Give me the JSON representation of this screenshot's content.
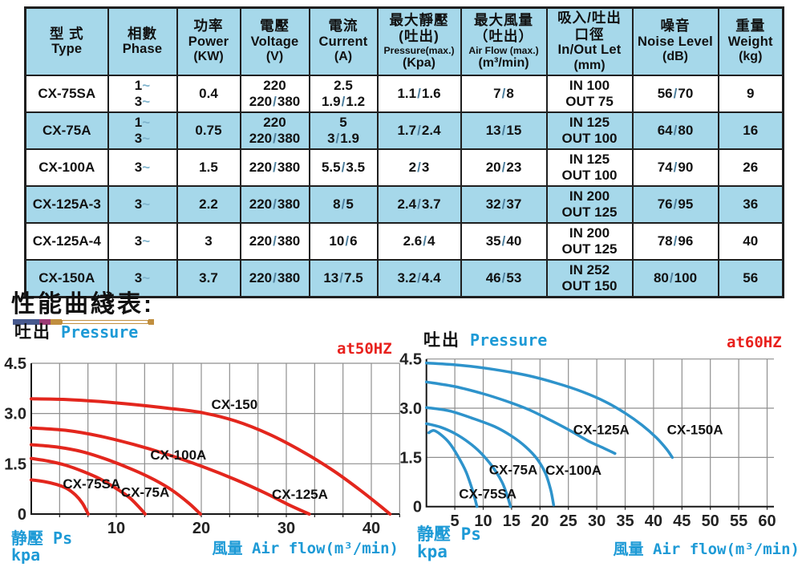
{
  "table": {
    "headers": [
      {
        "key": "type",
        "lines": [
          [
            "型 式",
            "zh"
          ],
          [
            "Type",
            "en"
          ]
        ]
      },
      {
        "key": "phase",
        "lines": [
          [
            "相數",
            "zh"
          ],
          [
            "Phase",
            "en"
          ]
        ]
      },
      {
        "key": "power",
        "lines": [
          [
            "功率",
            "zh"
          ],
          [
            "Power",
            "en"
          ],
          [
            "(KW)",
            "unit"
          ]
        ]
      },
      {
        "key": "voltage",
        "lines": [
          [
            "電壓",
            "zh"
          ],
          [
            "Voltage",
            "en"
          ],
          [
            "(V)",
            "unit"
          ]
        ]
      },
      {
        "key": "current",
        "lines": [
          [
            "電流",
            "zh"
          ],
          [
            "Current",
            "en"
          ],
          [
            "(A)",
            "unit"
          ]
        ]
      },
      {
        "key": "pressure-max",
        "lines": [
          [
            "最大靜壓",
            "zh"
          ],
          [
            "(吐出)",
            "zh2"
          ],
          [
            "Pressure(max.)",
            "small"
          ],
          [
            "(Kpa)",
            "unit"
          ]
        ]
      },
      {
        "key": "airflow-max",
        "lines": [
          [
            "最大風量",
            "zh"
          ],
          [
            "（吐出）",
            "zh2"
          ],
          [
            "Air Flow (max.)",
            "small"
          ],
          [
            "(m³/min)",
            "unit"
          ]
        ]
      },
      {
        "key": "inout",
        "lines": [
          [
            "吸入/吐出",
            "zh"
          ],
          [
            "口徑",
            "zh2"
          ],
          [
            "In/Out Let",
            "en"
          ],
          [
            "(mm)",
            "unit"
          ]
        ]
      },
      {
        "key": "noise",
        "lines": [
          [
            "噪音",
            "zh"
          ],
          [
            "Noise Level",
            "en"
          ],
          [
            "(dB)",
            "unit"
          ]
        ]
      },
      {
        "key": "weight",
        "lines": [
          [
            "重量",
            "zh"
          ],
          [
            "Weight",
            "en"
          ],
          [
            "(kg)",
            "unit"
          ]
        ]
      }
    ],
    "rows": [
      {
        "cells": [
          [
            "CX-75SA"
          ],
          [
            "1~",
            "3~"
          ],
          [
            "0.4"
          ],
          [
            "220",
            "220/380"
          ],
          [
            "2.5",
            "1.9/1.2"
          ],
          [
            "1.1/1.6"
          ],
          [
            "7/8"
          ],
          [
            "IN 100",
            "OUT 75"
          ],
          [
            "56/70"
          ],
          [
            "9"
          ]
        ]
      },
      {
        "cells": [
          [
            "CX-75A"
          ],
          [
            "1~",
            "3~"
          ],
          [
            "0.75"
          ],
          [
            "220",
            "220/380"
          ],
          [
            "5",
            "3/1.9"
          ],
          [
            "1.7/2.4"
          ],
          [
            "13/15"
          ],
          [
            "IN 125",
            "OUT 100"
          ],
          [
            "64/80"
          ],
          [
            "16"
          ]
        ]
      },
      {
        "cells": [
          [
            "CX-100A"
          ],
          [
            "3~"
          ],
          [
            "1.5"
          ],
          [
            "220/380"
          ],
          [
            "5.5/3.5"
          ],
          [
            "2/3"
          ],
          [
            "20/23"
          ],
          [
            "IN 125",
            "OUT 100"
          ],
          [
            "74/90"
          ],
          [
            "26"
          ]
        ]
      },
      {
        "cells": [
          [
            "CX-125A-3"
          ],
          [
            "3~"
          ],
          [
            "2.2"
          ],
          [
            "220/380"
          ],
          [
            "8/5"
          ],
          [
            "2.4/3.7"
          ],
          [
            "32/37"
          ],
          [
            "IN 200",
            "OUT 125"
          ],
          [
            "76/95"
          ],
          [
            "36"
          ]
        ]
      },
      {
        "cells": [
          [
            "CX-125A-4"
          ],
          [
            "3~"
          ],
          [
            "3"
          ],
          [
            "220/380"
          ],
          [
            "10/6"
          ],
          [
            "2.6/4"
          ],
          [
            "35/40"
          ],
          [
            "IN 200",
            "OUT 125"
          ],
          [
            "78/96"
          ],
          [
            "40"
          ]
        ]
      },
      {
        "cells": [
          [
            "CX-150A"
          ],
          [
            "3~"
          ],
          [
            "3.7"
          ],
          [
            "220/380"
          ],
          [
            "13/7.5"
          ],
          [
            "3.2/4.4"
          ],
          [
            "46/53"
          ],
          [
            "IN 252",
            "OUT 150"
          ],
          [
            "80/100"
          ],
          [
            "56"
          ]
        ]
      }
    ]
  },
  "section": {
    "title": "性能曲綫表:"
  },
  "chart_data": [
    {
      "type": "line",
      "title": "at50HZ",
      "pressure_label_zh": "吐出",
      "pressure_label_en": "Pressure",
      "y_caption_line1": "静壓 Ps",
      "y_caption_line2": "kpa",
      "x_caption": "風量 Air flow(m³/min)",
      "xlim": [
        0,
        43.5
      ],
      "ylim": [
        0,
        4.5
      ],
      "x_ticks": [
        10,
        20,
        30,
        40
      ],
      "y_ticks": [
        0,
        1.5,
        3.0,
        4.5
      ],
      "grid": true,
      "color": "#e3261d",
      "series": [
        {
          "name": "CX-75SA",
          "label_at": [
            7.1,
            0.77
          ],
          "points": [
            [
              0,
              1.02
            ],
            [
              1.5,
              0.97
            ],
            [
              3,
              0.88
            ],
            [
              4.2,
              0.76
            ],
            [
              5.2,
              0.57
            ],
            [
              6,
              0.33
            ],
            [
              6.7,
              0
            ]
          ]
        },
        {
          "name": "CX-75A",
          "label_at": [
            13.4,
            0.52
          ],
          "points": [
            [
              0,
              1.66
            ],
            [
              2,
              1.58
            ],
            [
              4,
              1.46
            ],
            [
              6,
              1.28
            ],
            [
              8,
              1.06
            ],
            [
              10,
              0.76
            ],
            [
              11.5,
              0.5
            ],
            [
              12.7,
              0.2
            ],
            [
              13.4,
              0
            ]
          ]
        },
        {
          "name": "CX-100A",
          "label_at": [
            17.3,
            1.63
          ],
          "points": [
            [
              0,
              2.07
            ],
            [
              3,
              2.0
            ],
            [
              6,
              1.86
            ],
            [
              9,
              1.62
            ],
            [
              12,
              1.32
            ],
            [
              14.5,
              1.02
            ],
            [
              16.5,
              0.72
            ],
            [
              18.5,
              0.33
            ],
            [
              19.9,
              0
            ]
          ]
        },
        {
          "name": "CX-125A",
          "label_at": [
            31.6,
            0.45
          ],
          "points": [
            [
              0,
              2.57
            ],
            [
              4,
              2.5
            ],
            [
              8,
              2.33
            ],
            [
              12,
              2.08
            ],
            [
              16,
              1.78
            ],
            [
              20,
              1.43
            ],
            [
              24,
              1.03
            ],
            [
              27.5,
              0.63
            ],
            [
              30.5,
              0.25
            ],
            [
              32.7,
              0
            ]
          ]
        },
        {
          "name": "CX-150",
          "label_at": [
            23.9,
            3.14
          ],
          "points": [
            [
              0,
              3.44
            ],
            [
              4,
              3.42
            ],
            [
              8,
              3.36
            ],
            [
              12,
              3.27
            ],
            [
              16,
              3.16
            ],
            [
              20,
              3.03
            ],
            [
              24,
              2.78
            ],
            [
              28,
              2.38
            ],
            [
              32,
              1.85
            ],
            [
              35.5,
              1.3
            ],
            [
              38.5,
              0.75
            ],
            [
              41,
              0.25
            ],
            [
              42.2,
              0
            ]
          ]
        }
      ]
    },
    {
      "type": "line",
      "title": "at60HZ",
      "pressure_label_zh": "吐出",
      "pressure_label_en": "Pressure",
      "y_caption_line1": "静壓 Ps",
      "y_caption_line2": "kpa",
      "x_caption": "風量 Air flow(m³/min)",
      "xlim": [
        0,
        61.5
      ],
      "ylim": [
        0,
        4.5
      ],
      "x_ticks": [
        5,
        10,
        15,
        20,
        25,
        30,
        35,
        40,
        45,
        50,
        55,
        60
      ],
      "y_ticks": [
        0,
        1.5,
        3.0,
        4.5
      ],
      "grid": true,
      "color": "#2e93cb",
      "series": [
        {
          "name": "CX-75SA",
          "label_at": [
            10.8,
            0.25
          ],
          "points": [
            [
              0.4,
              2.25
            ],
            [
              1.3,
              2.32
            ],
            [
              2.5,
              2.2
            ],
            [
              4,
              1.95
            ],
            [
              5.5,
              1.55
            ],
            [
              7,
              1.05
            ],
            [
              8.2,
              0.45
            ],
            [
              8.9,
              0
            ]
          ]
        },
        {
          "name": "CX-75A",
          "label_at": [
            15.3,
            0.98
          ],
          "points": [
            [
              0,
              2.53
            ],
            [
              2.5,
              2.42
            ],
            [
              5,
              2.23
            ],
            [
              7.5,
              1.95
            ],
            [
              9.5,
              1.65
            ],
            [
              11.5,
              1.25
            ],
            [
              13.3,
              0.75
            ],
            [
              14.3,
              0.3
            ],
            [
              14.8,
              0
            ]
          ]
        },
        {
          "name": "CX-100A",
          "label_at": [
            25.9,
            0.97
          ],
          "points": [
            [
              0,
              3.02
            ],
            [
              4,
              2.92
            ],
            [
              8,
              2.7
            ],
            [
              12,
              2.44
            ],
            [
              15,
              2.15
            ],
            [
              17.5,
              1.82
            ],
            [
              19.5,
              1.45
            ],
            [
              21,
              1.0
            ],
            [
              21.9,
              0.5
            ],
            [
              22.4,
              0.05
            ]
          ]
        },
        {
          "name": "CX-125A",
          "label_at": [
            30.8,
            2.2
          ],
          "points": [
            [
              0,
              3.8
            ],
            [
              5,
              3.66
            ],
            [
              10,
              3.44
            ],
            [
              14,
              3.22
            ],
            [
              18,
              2.96
            ],
            [
              22,
              2.62
            ],
            [
              25.5,
              2.3
            ],
            [
              28.5,
              2.0
            ],
            [
              31,
              1.8
            ],
            [
              33.2,
              1.62
            ]
          ]
        },
        {
          "name": "CX-150A",
          "label_at": [
            47.3,
            2.2
          ],
          "points": [
            [
              0,
              4.38
            ],
            [
              6,
              4.31
            ],
            [
              12,
              4.18
            ],
            [
              18,
              3.99
            ],
            [
              23,
              3.76
            ],
            [
              27.5,
              3.5
            ],
            [
              31.5,
              3.2
            ],
            [
              35,
              2.85
            ],
            [
              38,
              2.48
            ],
            [
              40.5,
              2.1
            ],
            [
              42.3,
              1.75
            ],
            [
              43.3,
              1.5
            ]
          ]
        }
      ]
    }
  ]
}
